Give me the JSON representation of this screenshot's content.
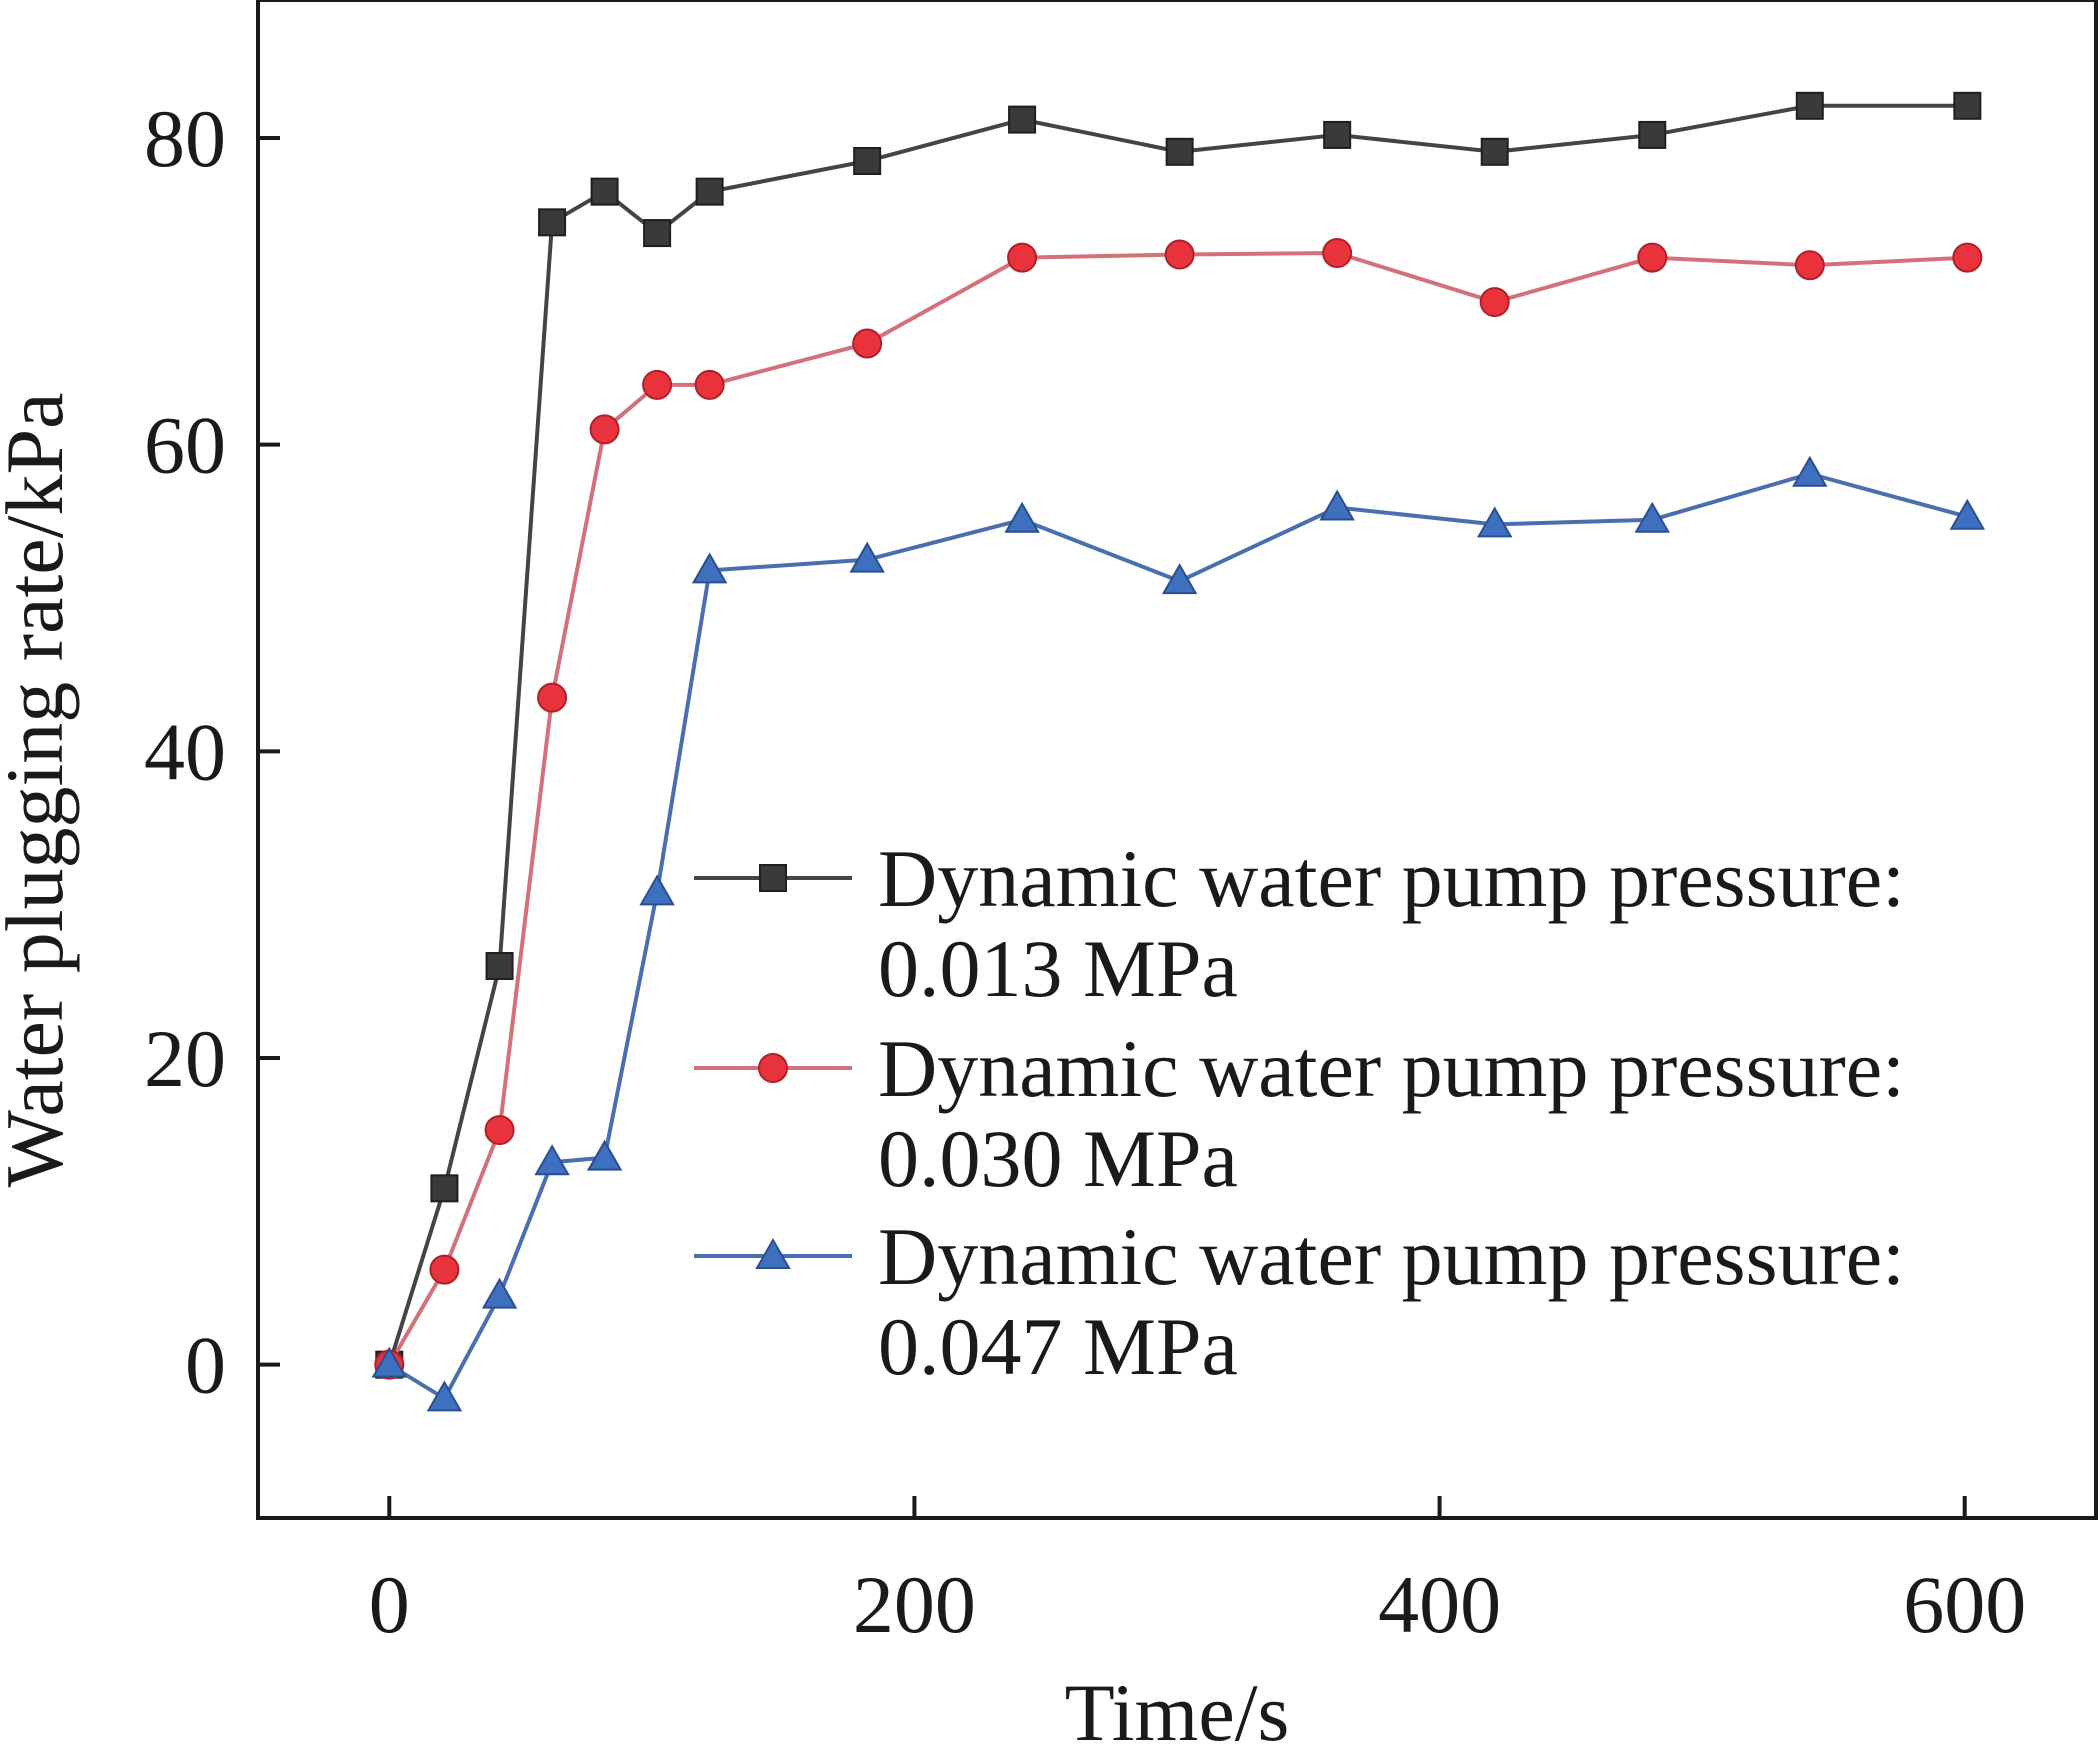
{
  "chart_data": {
    "type": "line",
    "title": "",
    "xlabel": "Time/s",
    "ylabel": "Water plugging rate/kPa",
    "xlim": [
      -50,
      650
    ],
    "ylim": [
      -10,
      89
    ],
    "xticks": [
      0,
      200,
      400,
      600
    ],
    "yticks": [
      0,
      20,
      40,
      60,
      80
    ],
    "grid": false,
    "legend_position": "lower-right",
    "series": [
      {
        "name_line1": "Dynamic water pump pressure:",
        "name_line2": "0.013 MPa",
        "marker": "square",
        "color": "#444444",
        "marker_color": "#3a3a3a",
        "x": [
          0,
          21,
          42,
          62,
          82,
          102,
          122,
          182,
          241,
          301,
          361,
          421,
          481,
          541,
          601
        ],
        "y": [
          0,
          11.5,
          26,
          74.5,
          76.5,
          73.8,
          76.5,
          78.5,
          81.2,
          79.1,
          80.2,
          79.1,
          80.2,
          82.1,
          82.1
        ]
      },
      {
        "name_line1": "Dynamic water pump pressure:",
        "name_line2": "0.030 MPa",
        "marker": "circle",
        "color": "#d4707a",
        "marker_color": "#e8323c",
        "x": [
          0,
          21,
          42,
          62,
          82,
          102,
          122,
          182,
          241,
          301,
          361,
          421,
          481,
          541,
          601
        ],
        "y": [
          0,
          6.2,
          15.3,
          43.5,
          61.0,
          63.9,
          63.9,
          66.6,
          72.2,
          72.4,
          72.5,
          69.3,
          72.2,
          71.7,
          72.2
        ]
      },
      {
        "name_line1": "Dynamic water pump pressure:",
        "name_line2": "0.047 MPa",
        "marker": "triangle",
        "color": "#4a6fb0",
        "marker_color": "#3f6fbf",
        "x": [
          0,
          21,
          42,
          62,
          82,
          102,
          122,
          182,
          241,
          301,
          361,
          421,
          481,
          541,
          601
        ],
        "y": [
          0,
          -2.2,
          4.5,
          13.2,
          13.5,
          30.8,
          51.8,
          52.5,
          55.1,
          51.1,
          55.9,
          54.8,
          55.1,
          58.1,
          55.3
        ]
      }
    ]
  }
}
